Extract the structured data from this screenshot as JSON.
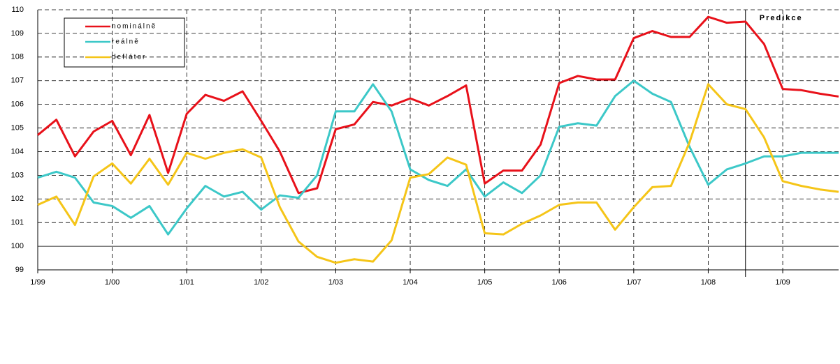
{
  "chart_data": {
    "type": "line",
    "categories": [
      "1/99",
      null,
      null,
      null,
      "1/00",
      null,
      null,
      null,
      "1/01",
      null,
      null,
      null,
      "1/02",
      null,
      null,
      null,
      "1/03",
      null,
      null,
      null,
      "1/04",
      null,
      null,
      null,
      "1/05",
      null,
      null,
      null,
      "1/06",
      null,
      null,
      null,
      "1/07",
      null,
      null,
      null,
      "1/08",
      null,
      null,
      null,
      "1/09",
      null,
      null,
      null
    ],
    "series": [
      {
        "name": "nominálně",
        "color": "#e8111a",
        "values": [
          104.7,
          105.35,
          103.8,
          104.85,
          105.3,
          103.85,
          105.55,
          103.1,
          105.6,
          106.4,
          106.15,
          106.55,
          105.3,
          104.0,
          102.25,
          102.45,
          104.95,
          105.15,
          106.1,
          105.95,
          106.25,
          105.95,
          106.35,
          106.8,
          102.65,
          103.2,
          103.2,
          104.3,
          106.9,
          107.2,
          107.05,
          107.05,
          108.8,
          109.1,
          108.85,
          108.85,
          109.7,
          109.45,
          109.5,
          108.55,
          106.65,
          106.6,
          106.45,
          106.33
        ]
      },
      {
        "name": "reálně",
        "color": "#3cc8c8",
        "values": [
          102.9,
          103.15,
          102.9,
          101.85,
          101.7,
          101.2,
          101.7,
          100.5,
          101.6,
          102.55,
          102.1,
          102.3,
          101.55,
          102.15,
          102.05,
          103.0,
          105.7,
          105.7,
          106.85,
          105.7,
          103.25,
          102.8,
          102.55,
          103.25,
          102.1,
          102.7,
          102.25,
          103.0,
          105.05,
          105.2,
          105.1,
          106.35,
          107.0,
          106.45,
          106.1,
          104.2,
          102.6,
          103.25,
          103.5,
          103.8,
          103.8,
          103.95,
          103.95,
          103.95
        ]
      },
      {
        "name": "deflátor",
        "color": "#f5c518",
        "values": [
          101.75,
          102.1,
          100.9,
          102.95,
          103.5,
          102.65,
          103.7,
          102.6,
          103.95,
          103.7,
          103.95,
          104.1,
          103.75,
          101.65,
          100.2,
          99.55,
          99.3,
          99.45,
          99.35,
          100.25,
          102.9,
          103.05,
          103.75,
          103.45,
          100.55,
          100.5,
          100.95,
          101.3,
          101.75,
          101.85,
          101.85,
          100.7,
          101.65,
          102.5,
          102.55,
          104.4,
          106.85,
          106.0,
          105.8,
          104.6,
          102.75,
          102.55,
          102.4,
          102.3
        ]
      }
    ],
    "ylim": [
      99,
      110
    ],
    "yticks": [
      99,
      100,
      101,
      102,
      103,
      104,
      105,
      106,
      107,
      108,
      109,
      110
    ],
    "grid": true,
    "annotation": {
      "text": "Predikce",
      "x": 38
    }
  }
}
